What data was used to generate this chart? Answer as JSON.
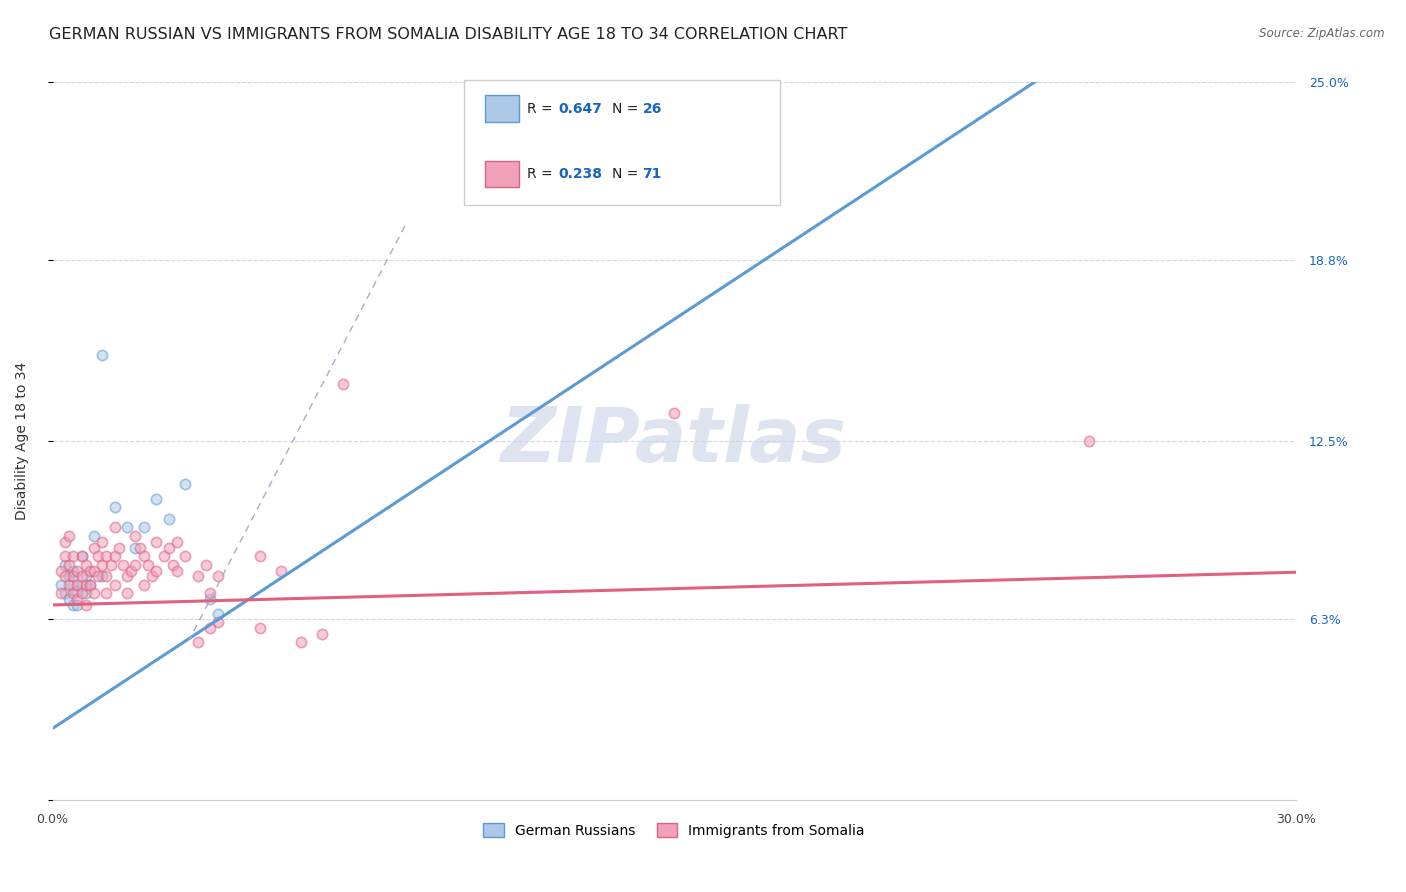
{
  "title": "GERMAN RUSSIAN VS IMMIGRANTS FROM SOMALIA DISABILITY AGE 18 TO 34 CORRELATION CHART",
  "source": "Source: ZipAtlas.com",
  "ylabel": "Disability Age 18 to 34",
  "xlim": [
    0.0,
    0.3
  ],
  "ylim": [
    0.0,
    0.25
  ],
  "yticks": [
    0.0,
    0.063,
    0.125,
    0.188,
    0.25
  ],
  "ytick_labels": [
    "",
    "6.3%",
    "12.5%",
    "18.8%",
    "25.0%"
  ],
  "xticks": [
    0.0,
    0.05,
    0.1,
    0.15,
    0.2,
    0.25,
    0.3
  ],
  "xtick_labels": [
    "0.0%",
    "",
    "",
    "",
    "",
    "",
    "30.0%"
  ],
  "watermark": "ZIPatlas",
  "blue_color": "#5b9bd5",
  "pink_color": "#e06080",
  "blue_fill": "#aec9e8",
  "pink_fill": "#f0a0b8",
  "grid_color": "#d0d8ea",
  "background_color": "#ffffff",
  "title_fontsize": 11.5,
  "tick_fontsize": 9,
  "scatter_size": 55,
  "scatter_alpha": 0.55,
  "legend_R_color": "#1565c0",
  "right_tick_color": "#1565c0",
  "blue_line_slope": 0.95,
  "blue_line_intercept": 0.025,
  "pink_line_slope": 0.038,
  "pink_line_intercept": 0.068,
  "blue_points": [
    [
      0.002,
      0.075
    ],
    [
      0.003,
      0.082
    ],
    [
      0.003,
      0.072
    ],
    [
      0.004,
      0.078
    ],
    [
      0.004,
      0.07
    ],
    [
      0.005,
      0.075
    ],
    [
      0.005,
      0.068
    ],
    [
      0.005,
      0.08
    ],
    [
      0.006,
      0.073
    ],
    [
      0.006,
      0.068
    ],
    [
      0.007,
      0.085
    ],
    [
      0.007,
      0.075
    ],
    [
      0.008,
      0.078
    ],
    [
      0.008,
      0.072
    ],
    [
      0.009,
      0.075
    ],
    [
      0.01,
      0.092
    ],
    [
      0.012,
      0.078
    ],
    [
      0.015,
      0.102
    ],
    [
      0.018,
      0.095
    ],
    [
      0.02,
      0.088
    ],
    [
      0.022,
      0.095
    ],
    [
      0.025,
      0.105
    ],
    [
      0.028,
      0.098
    ],
    [
      0.032,
      0.11
    ],
    [
      0.012,
      0.155
    ],
    [
      0.038,
      0.07
    ],
    [
      0.04,
      0.065
    ]
  ],
  "pink_points": [
    [
      0.002,
      0.072
    ],
    [
      0.002,
      0.08
    ],
    [
      0.003,
      0.078
    ],
    [
      0.003,
      0.085
    ],
    [
      0.003,
      0.09
    ],
    [
      0.004,
      0.075
    ],
    [
      0.004,
      0.082
    ],
    [
      0.004,
      0.092
    ],
    [
      0.005,
      0.078
    ],
    [
      0.005,
      0.085
    ],
    [
      0.005,
      0.072
    ],
    [
      0.006,
      0.08
    ],
    [
      0.006,
      0.075
    ],
    [
      0.006,
      0.07
    ],
    [
      0.007,
      0.085
    ],
    [
      0.007,
      0.078
    ],
    [
      0.007,
      0.072
    ],
    [
      0.008,
      0.082
    ],
    [
      0.008,
      0.075
    ],
    [
      0.008,
      0.068
    ],
    [
      0.009,
      0.08
    ],
    [
      0.009,
      0.075
    ],
    [
      0.01,
      0.088
    ],
    [
      0.01,
      0.08
    ],
    [
      0.01,
      0.072
    ],
    [
      0.011,
      0.085
    ],
    [
      0.011,
      0.078
    ],
    [
      0.012,
      0.09
    ],
    [
      0.012,
      0.082
    ],
    [
      0.013,
      0.085
    ],
    [
      0.013,
      0.078
    ],
    [
      0.013,
      0.072
    ],
    [
      0.014,
      0.082
    ],
    [
      0.015,
      0.095
    ],
    [
      0.015,
      0.085
    ],
    [
      0.015,
      0.075
    ],
    [
      0.016,
      0.088
    ],
    [
      0.017,
      0.082
    ],
    [
      0.018,
      0.078
    ],
    [
      0.018,
      0.072
    ],
    [
      0.019,
      0.08
    ],
    [
      0.02,
      0.092
    ],
    [
      0.02,
      0.082
    ],
    [
      0.021,
      0.088
    ],
    [
      0.022,
      0.085
    ],
    [
      0.022,
      0.075
    ],
    [
      0.023,
      0.082
    ],
    [
      0.024,
      0.078
    ],
    [
      0.025,
      0.09
    ],
    [
      0.025,
      0.08
    ],
    [
      0.027,
      0.085
    ],
    [
      0.028,
      0.088
    ],
    [
      0.029,
      0.082
    ],
    [
      0.03,
      0.09
    ],
    [
      0.03,
      0.08
    ],
    [
      0.032,
      0.085
    ],
    [
      0.035,
      0.078
    ],
    [
      0.037,
      0.082
    ],
    [
      0.038,
      0.072
    ],
    [
      0.04,
      0.078
    ],
    [
      0.05,
      0.085
    ],
    [
      0.055,
      0.08
    ],
    [
      0.04,
      0.062
    ],
    [
      0.05,
      0.06
    ],
    [
      0.06,
      0.055
    ],
    [
      0.065,
      0.058
    ],
    [
      0.035,
      0.055
    ],
    [
      0.038,
      0.06
    ],
    [
      0.15,
      0.135
    ],
    [
      0.25,
      0.125
    ],
    [
      0.07,
      0.145
    ]
  ]
}
